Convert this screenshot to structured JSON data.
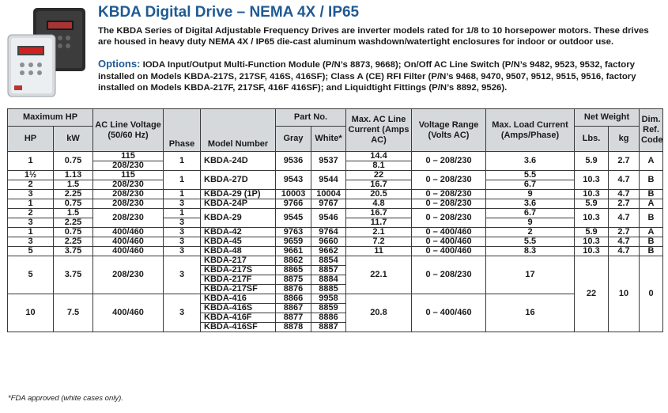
{
  "title": "KBDA Digital Drive – NEMA 4X / IP65",
  "intro": "The KBDA Series of Digital Adjustable Frequency Drives are inverter models rated for 1/8 to 10 horsepower motors. These drives are housed in heavy duty NEMA 4X / IP65 die-cast aluminum washdown/watertight enclosures for indoor or outdoor use.",
  "options_label": "Options:",
  "options_text": "IODA Input/Output Multi-Function Module (P/N’s 8873, 9668); On/Off AC Line Switch (P/N’s 9482, 9523, 9532, factory installed on Models KBDA-217S, 217SF, 416S, 416SF); Class A (CE) RFI Filter (P/N’s 9468, 9470, 9507, 9512, 9515, 9516, factory installed on Models KBDA-217F, 217SF, 416F 416SF); and Liquidtight Fittings (P/N’s 8892, 9526).",
  "headers": {
    "max_hp": "Maximum HP",
    "hp": "HP",
    "kw": "kW",
    "ac_line_voltage": "AC Line Voltage (50/60 Hz)",
    "phase": "Phase",
    "model_number": "Model Number",
    "part_no": "Part No.",
    "gray": "Gray",
    "white": "White*",
    "max_ac_current": "Max. AC Line Current (Amps AC)",
    "voltage_range": "Voltage Range (Volts AC)",
    "max_load_current": "Max. Load Current (Amps/Phase)",
    "net_weight": "Net Weight",
    "lbs": "Lbs.",
    "kg": "kg",
    "dim_ref_code": "Dim. Ref. Code"
  },
  "rows": {
    "r1": {
      "hp": "1",
      "kw": "0.75",
      "v1": "115",
      "v2": "208/230",
      "phase": "1",
      "model": "KBDA-24D",
      "gray": "9536",
      "white": "9537",
      "cur1": "14.4",
      "cur2": "8.1",
      "range": "0 – 208/230",
      "load": "3.6",
      "lbs": "5.9",
      "kg": "2.7",
      "dim": "A"
    },
    "r2": {
      "hp1": "1½",
      "kw1": "1.13",
      "hp2": "2",
      "kw2": "1.5",
      "v1": "115",
      "v2": "208/230",
      "phase": "1",
      "model": "KBDA-27D",
      "gray": "9543",
      "white": "9544",
      "cur1": "22",
      "cur2": "16.7",
      "range": "0 – 208/230",
      "load1": "5.5",
      "load2": "6.7",
      "lbs": "10.3",
      "kg": "4.7",
      "dim": "B"
    },
    "r3": {
      "hp": "3",
      "kw": "2.25",
      "volt": "208/230",
      "phase": "1",
      "model": "KBDA-29 (1P)",
      "gray": "10003",
      "white": "10004",
      "cur": "20.5",
      "range": "0 – 208/230",
      "load": "9",
      "lbs": "10.3",
      "kg": "4.7",
      "dim": "B"
    },
    "r4": {
      "hp": "1",
      "kw": "0.75",
      "volt": "208/230",
      "phase": "3",
      "model": "KBDA-24P",
      "gray": "9766",
      "white": "9767",
      "cur": "4.8",
      "range": "0 – 208/230",
      "load": "3.6",
      "lbs": "5.9",
      "kg": "2.7",
      "dim": "A"
    },
    "r5": {
      "hp1": "2",
      "kw1": "1.5",
      "hp2": "3",
      "kw2": "2.25",
      "volt": "208/230",
      "phase1": "1",
      "phase2": "3",
      "model": "KBDA-29",
      "gray": "9545",
      "white": "9546",
      "cur1": "16.7",
      "cur2": "11.7",
      "range": "0 – 208/230",
      "load1": "6.7",
      "load2": "9",
      "lbs": "10.3",
      "kg": "4.7",
      "dim": "B"
    },
    "r6": {
      "hp": "1",
      "kw": "0.75",
      "volt": "400/460",
      "phase": "3",
      "model": "KBDA-42",
      "gray": "9763",
      "white": "9764",
      "cur": "2.1",
      "range": "0 – 400/460",
      "load": "2",
      "lbs": "5.9",
      "kg": "2.7",
      "dim": "A"
    },
    "r7": {
      "hp": "3",
      "kw": "2.25",
      "volt": "400/460",
      "phase": "3",
      "model": "KBDA-45",
      "gray": "9659",
      "white": "9660",
      "cur": "7.2",
      "range": "0 – 400/460",
      "load": "5.5",
      "lbs": "10.3",
      "kg": "4.7",
      "dim": "B"
    },
    "r8": {
      "hp": "5",
      "kw": "3.75",
      "volt": "400/460",
      "phase": "3",
      "model": "KBDA-48",
      "gray": "9661",
      "white": "9662",
      "cur": "11",
      "range": "0 – 400/460",
      "load": "8.3",
      "lbs": "10.3",
      "kg": "4.7",
      "dim": "B"
    }
  },
  "group217": {
    "hp": "5",
    "kw": "3.75",
    "volt": "208/230",
    "phase": "3",
    "cur": "22.1",
    "range": "0 – 208/230",
    "load": "17",
    "models": [
      {
        "model": "KBDA-217",
        "gray": "8862",
        "white": "8854"
      },
      {
        "model": "KBDA-217S",
        "gray": "8865",
        "white": "8857"
      },
      {
        "model": "KBDA-217F",
        "gray": "8875",
        "white": "8884"
      },
      {
        "model": "KBDA-217SF",
        "gray": "8876",
        "white": "8885"
      }
    ]
  },
  "group416": {
    "hp": "10",
    "kw": "7.5",
    "volt": "400/460",
    "phase": "3",
    "cur": "20.8",
    "range": "0 – 400/460",
    "load": "16",
    "models": [
      {
        "model": "KBDA-416",
        "gray": "8866",
        "white": "9958"
      },
      {
        "model": "KBDA-416S",
        "gray": "8867",
        "white": "8859"
      },
      {
        "model": "KBDA-416F",
        "gray": "8877",
        "white": "8886"
      },
      {
        "model": "KBDA-416SF",
        "gray": "8878",
        "white": "8887"
      }
    ]
  },
  "group_shared": {
    "lbs": "22",
    "kg": "10",
    "dim": "0"
  },
  "footnote": "*FDA approved (white cases only).",
  "colors": {
    "title_blue": "#1f5a93",
    "header_gray": "#d6d9dc"
  }
}
